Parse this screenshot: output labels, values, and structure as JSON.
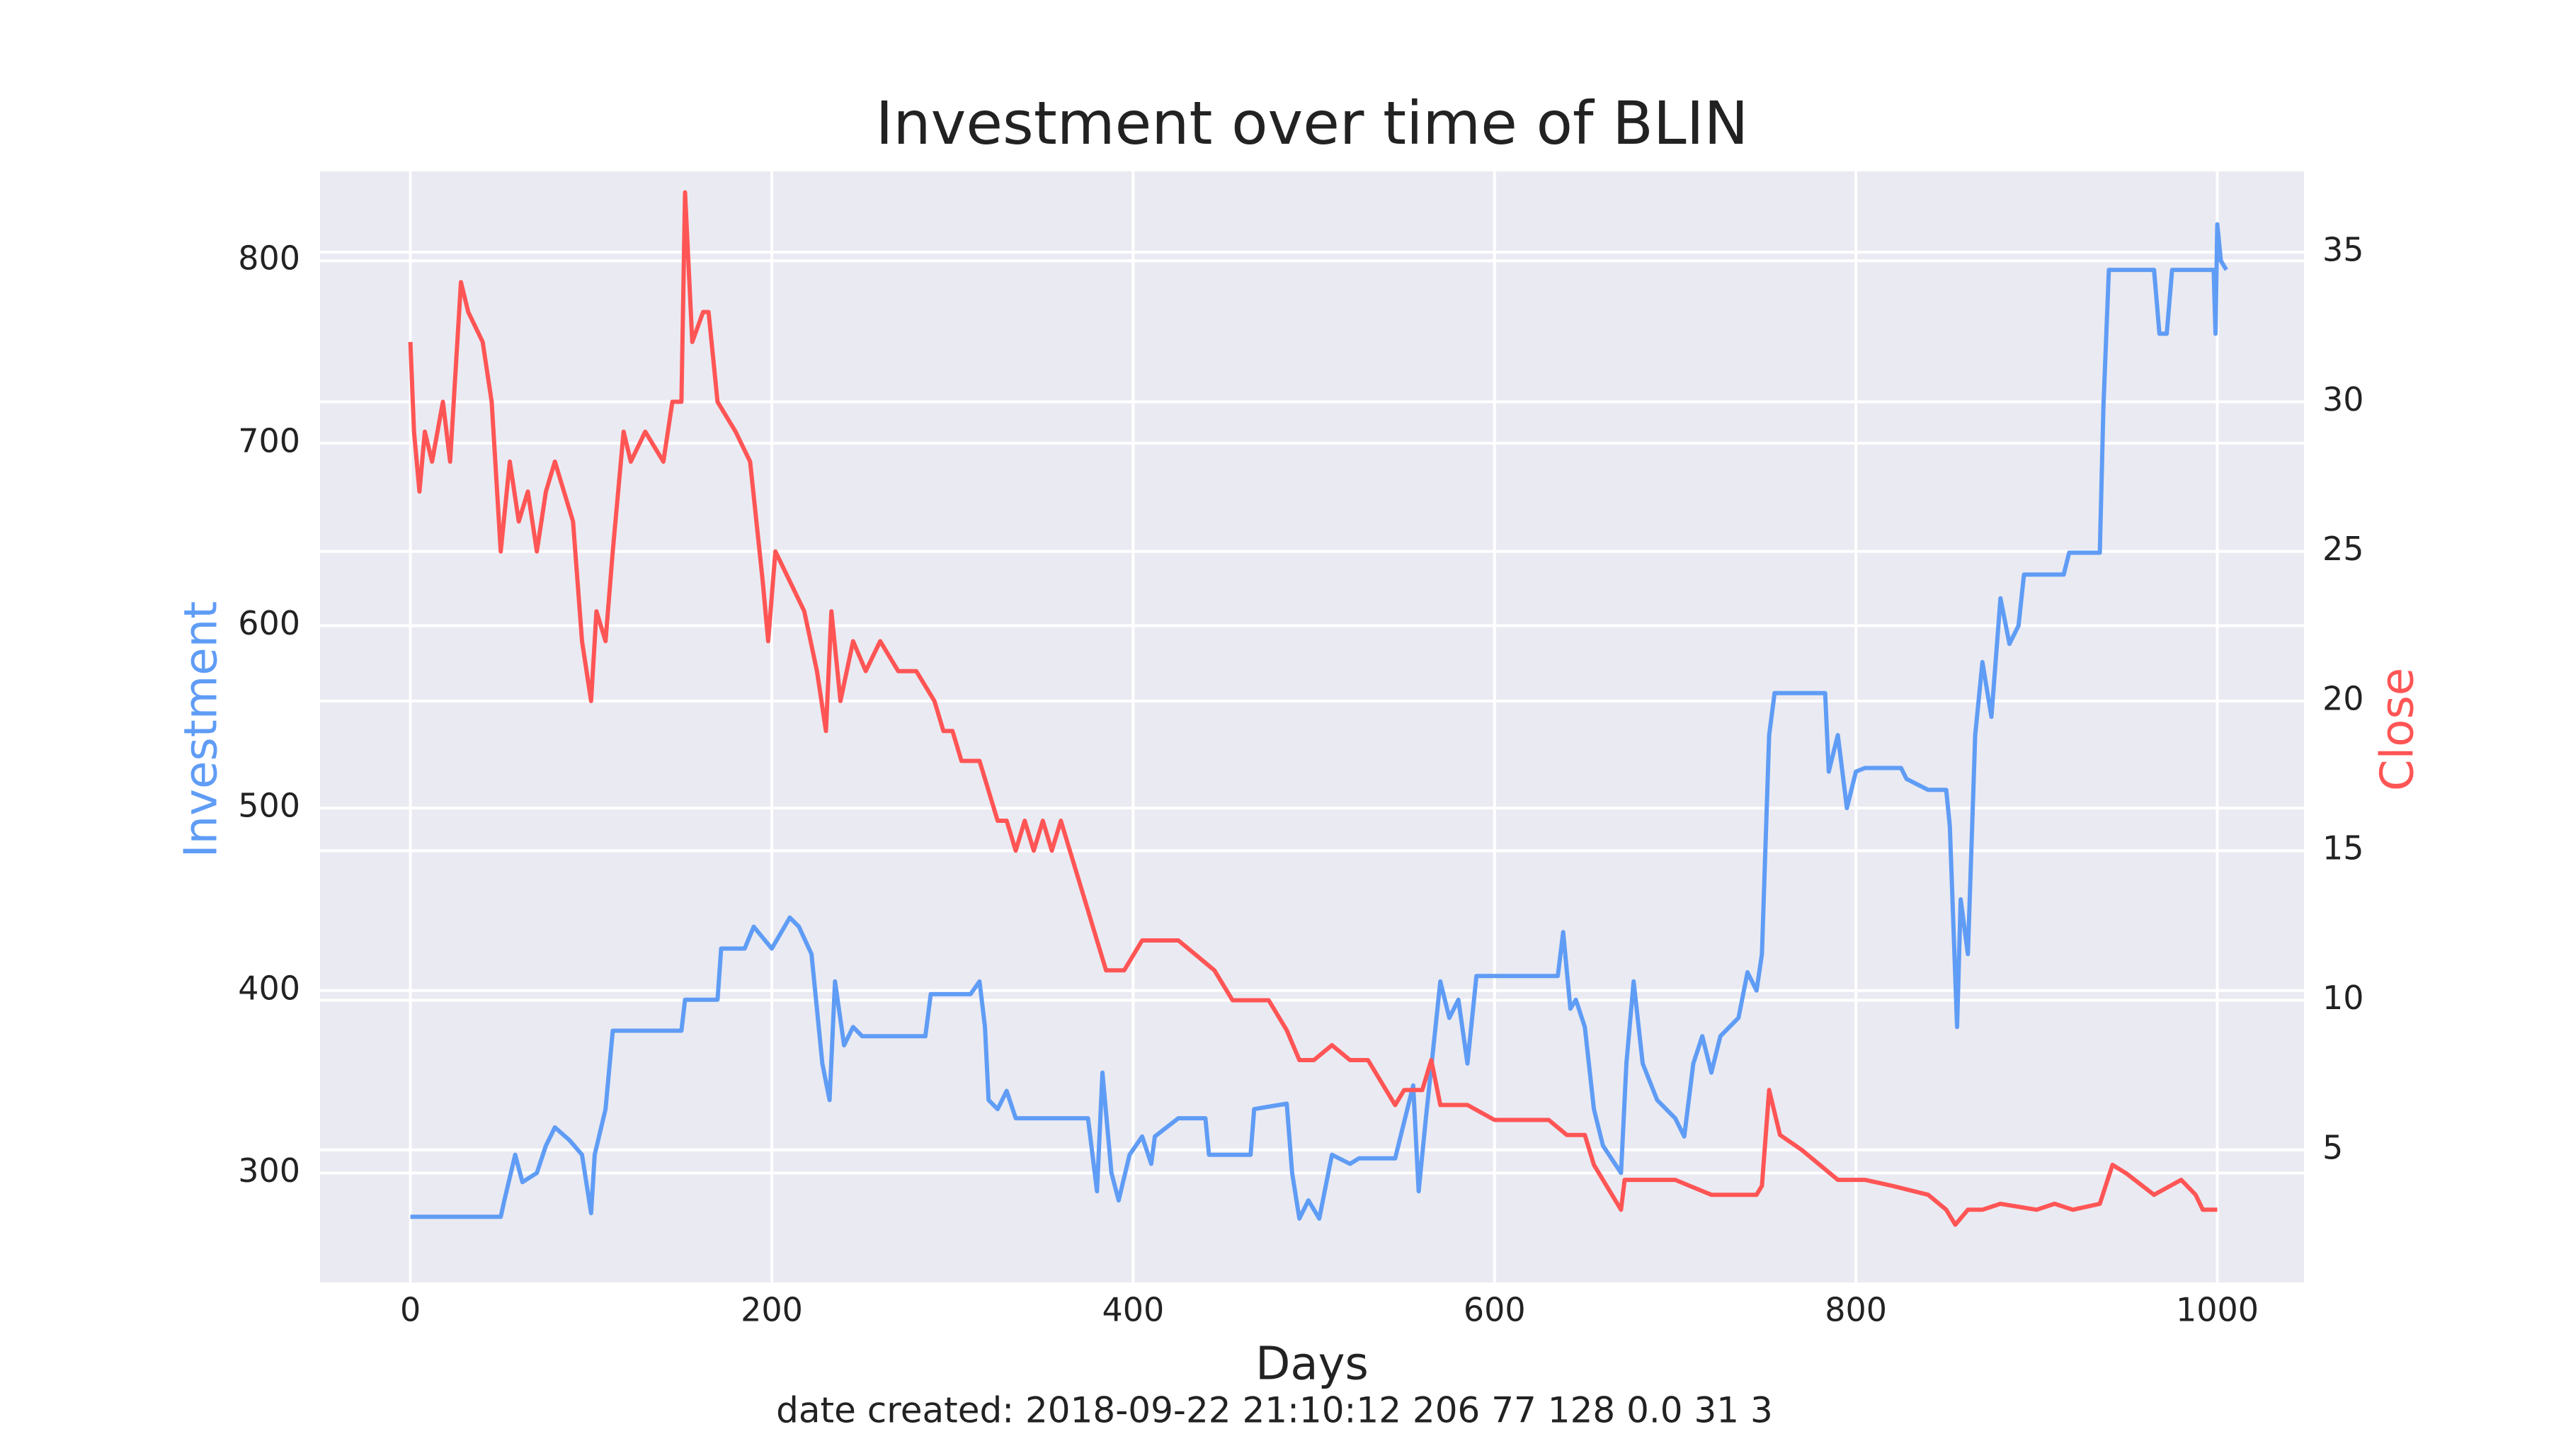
{
  "chart_data": {
    "type": "line",
    "title": "Investment over time of BLIN",
    "xlabel": "Days",
    "annotation": "date created: 2018-09-22 21:10:12 206 77 128 0.0 31 3",
    "xlim": [
      -50,
      1048
    ],
    "xticks": [
      0,
      200,
      400,
      600,
      800,
      1000
    ],
    "ylim": [
      240,
      849
    ],
    "yticks": [
      300,
      400,
      500,
      600,
      700,
      800
    ],
    "y2lim": [
      0.57,
      37.7
    ],
    "y2ticks": [
      5,
      10,
      15,
      20,
      25,
      30,
      35
    ],
    "grid": true,
    "series": [
      {
        "name": "Investment",
        "color": "#5f9cf5",
        "x": [
          0,
          50,
          52,
          58,
          62,
          70,
          75,
          80,
          88,
          95,
          100,
          102,
          108,
          112,
          150,
          152,
          170,
          172,
          185,
          190,
          200,
          210,
          215,
          222,
          228,
          232,
          235,
          240,
          245,
          250,
          285,
          288,
          310,
          315,
          318,
          320,
          325,
          330,
          335,
          375,
          380,
          383,
          388,
          392,
          398,
          405,
          410,
          412,
          425,
          440,
          442,
          465,
          467,
          485,
          488,
          492,
          497,
          503,
          510,
          520,
          525,
          545,
          548,
          555,
          558,
          562,
          570,
          575,
          580,
          585,
          590,
          635,
          638,
          642,
          645,
          650,
          655,
          660,
          670,
          673,
          677,
          682,
          690,
          700,
          705,
          710,
          715,
          720,
          725,
          730,
          735,
          740,
          745,
          748,
          752,
          755,
          783,
          785,
          790,
          795,
          800,
          805,
          825,
          828,
          840,
          850,
          852,
          856,
          858,
          862,
          866,
          870,
          875,
          880,
          885,
          890,
          893,
          915,
          918,
          935,
          937,
          940,
          965,
          968,
          972,
          975,
          998,
          999,
          1000,
          1002,
          1005
        ],
        "values": [
          276,
          276,
          285,
          310,
          295,
          300,
          315,
          325,
          318,
          310,
          278,
          310,
          335,
          378,
          378,
          395,
          395,
          423,
          423,
          435,
          423,
          440,
          435,
          420,
          360,
          340,
          405,
          370,
          380,
          375,
          375,
          398,
          398,
          405,
          380,
          340,
          335,
          345,
          330,
          330,
          290,
          355,
          300,
          285,
          310,
          320,
          305,
          320,
          330,
          330,
          310,
          310,
          335,
          338,
          300,
          275,
          285,
          275,
          310,
          305,
          308,
          308,
          320,
          348,
          290,
          330,
          405,
          385,
          395,
          360,
          408,
          408,
          432,
          390,
          395,
          380,
          335,
          315,
          300,
          360,
          405,
          360,
          340,
          330,
          320,
          360,
          375,
          355,
          375,
          380,
          385,
          410,
          400,
          420,
          540,
          563,
          563,
          520,
          540,
          500,
          520,
          522,
          522,
          516,
          510,
          510,
          490,
          380,
          450,
          420,
          540,
          580,
          550,
          615,
          590,
          600,
          628,
          628,
          640,
          640,
          720,
          795,
          795,
          760,
          760,
          795,
          795,
          760,
          820,
          800,
          795
        ]
      },
      {
        "name": "Close",
        "color": "#ff5555",
        "axis": "y2",
        "x": [
          0,
          2,
          5,
          8,
          12,
          18,
          22,
          28,
          32,
          40,
          45,
          50,
          55,
          60,
          65,
          70,
          75,
          80,
          85,
          90,
          95,
          100,
          103,
          108,
          112,
          118,
          122,
          130,
          140,
          145,
          150,
          152,
          156,
          162,
          165,
          170,
          180,
          188,
          195,
          198,
          202,
          210,
          218,
          225,
          230,
          233,
          238,
          245,
          252,
          260,
          270,
          280,
          290,
          295,
          300,
          305,
          315,
          320,
          325,
          330,
          335,
          340,
          345,
          350,
          355,
          360,
          365,
          370,
          375,
          380,
          385,
          395,
          405,
          415,
          425,
          435,
          445,
          455,
          465,
          475,
          485,
          492,
          500,
          510,
          520,
          530,
          540,
          545,
          550,
          560,
          565,
          570,
          585,
          600,
          615,
          630,
          640,
          650,
          655,
          665,
          670,
          672,
          680,
          700,
          720,
          730,
          745,
          748,
          752,
          758,
          770,
          780,
          790,
          805,
          820,
          840,
          850,
          855,
          862,
          870,
          880,
          900,
          910,
          920,
          935,
          942,
          950,
          965,
          980,
          988,
          992,
          1000
        ],
        "values": [
          32,
          29,
          27,
          29,
          28,
          30,
          28,
          34,
          33,
          32,
          30,
          25,
          28,
          26,
          27,
          25,
          27,
          28,
          27,
          26,
          22,
          20,
          23,
          22,
          25,
          29,
          28,
          29,
          28,
          30,
          30,
          37,
          32,
          33,
          33,
          30,
          29,
          28,
          24,
          22,
          25,
          24,
          23,
          21,
          19,
          23,
          20,
          22,
          21,
          22,
          21,
          21,
          20,
          19,
          19,
          18,
          18,
          17,
          16,
          16,
          15,
          16,
          15,
          16,
          15,
          16,
          15,
          14,
          13,
          12,
          11,
          11,
          12,
          12,
          12,
          11.5,
          11,
          10,
          10,
          10,
          9,
          8,
          8,
          8.5,
          8,
          8,
          7,
          6.5,
          7,
          7,
          8,
          6.5,
          6.5,
          6,
          6,
          6,
          5.5,
          5.5,
          4.5,
          3.5,
          3,
          4,
          4,
          4,
          3.5,
          3.5,
          3.5,
          3.8,
          7,
          5.5,
          5,
          4.5,
          4,
          4,
          3.8,
          3.5,
          3,
          2.5,
          3,
          3,
          3.2,
          3,
          3.2,
          3,
          3.2,
          4.5,
          4.2,
          3.5,
          4,
          3.5,
          3,
          3
        ]
      }
    ]
  }
}
